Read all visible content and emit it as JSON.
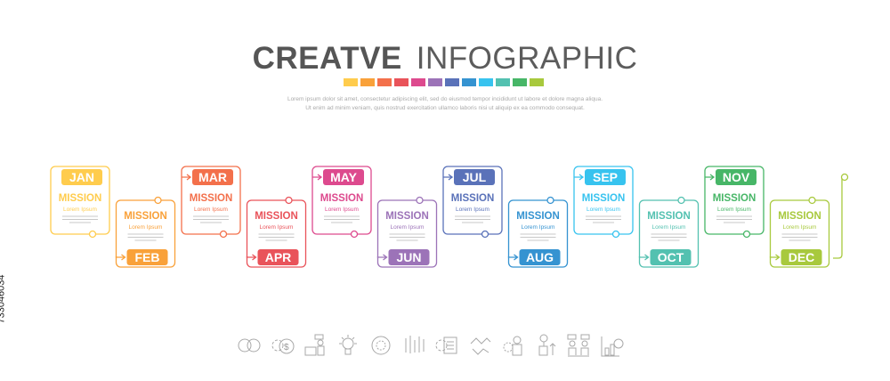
{
  "header": {
    "title_bold": "CREATVE",
    "title_light": "INFOGRAPHIC",
    "line1": "Lorem ipsum dolor sit amet, consectetur adipiscing elit, sed do eiusmod tempor incididunt ut labore et dolore magna aliqua.",
    "line2": "Ut enim ad minim veniam, quis nostrud exercitation ullamco laboris nisi ut aliquip ex ea commodo consequat."
  },
  "palette": [
    "#FFCC4D",
    "#F9A13A",
    "#F3704B",
    "#E9535A",
    "#DD4A8E",
    "#9C73B8",
    "#5A72B9",
    "#3593D1",
    "#37C3EF",
    "#53C1B0",
    "#47B667",
    "#A8C93D"
  ],
  "months": [
    {
      "label": "JAN",
      "heading": "MISSION",
      "sub": "Lorem Ipsum",
      "color": "#FFCC4D"
    },
    {
      "label": "FEB",
      "heading": "MISSION",
      "sub": "Lorem Ipsum",
      "color": "#F9A13A"
    },
    {
      "label": "MAR",
      "heading": "MISSION",
      "sub": "Lorem Ipsum",
      "color": "#F3704B"
    },
    {
      "label": "APR",
      "heading": "MISSION",
      "sub": "Lorem Ipsum",
      "color": "#E9535A"
    },
    {
      "label": "MAY",
      "heading": "MISSION",
      "sub": "Lorem Ipsum",
      "color": "#DD4A8E"
    },
    {
      "label": "JUN",
      "heading": "MISSION",
      "sub": "Lorem Ipsum",
      "color": "#9C73B8"
    },
    {
      "label": "JUL",
      "heading": "MISSION",
      "sub": "Lorem Ipsum",
      "color": "#5A72B9"
    },
    {
      "label": "AUG",
      "heading": "MISSION",
      "sub": "Lorem Ipsum",
      "color": "#3593D1"
    },
    {
      "label": "SEP",
      "heading": "MISSION",
      "sub": "Lorem Ipsum",
      "color": "#37C3EF"
    },
    {
      "label": "OCT",
      "heading": "MISSION",
      "sub": "Lorem Ipsum",
      "color": "#53C1B0"
    },
    {
      "label": "NOV",
      "heading": "MISSION",
      "sub": "Lorem Ipsum",
      "color": "#47B667"
    },
    {
      "label": "DEC",
      "heading": "MISSION",
      "sub": "Lorem Ipsum",
      "color": "#A8C93D"
    }
  ],
  "icons": [
    "currency-exchange-icon",
    "gear-dollar-icon",
    "presenter-icon",
    "lightbulb-dollar-icon",
    "gear-cycle-icon",
    "candlestick-chart-icon",
    "gear-checklist-icon",
    "handshake-icon",
    "team-gear-icon",
    "plant-growth-icon",
    "business-people-icon",
    "bar-chart-dollar-icon"
  ],
  "stock_id": "733046034"
}
